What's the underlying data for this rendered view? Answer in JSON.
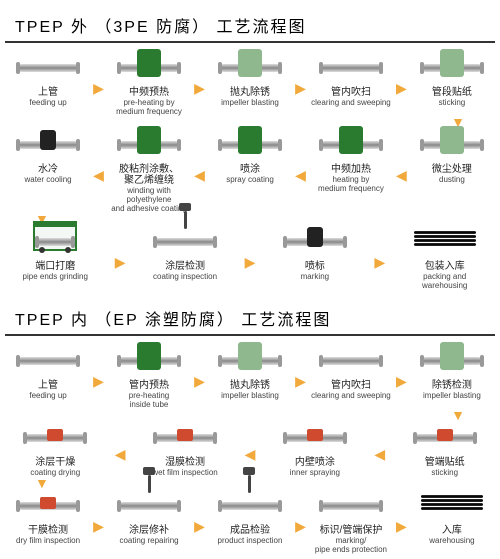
{
  "colors": {
    "arrow": "#f2a93b",
    "machine_green": "#2a7a2f",
    "machine_light": "#8fb88f",
    "machine_red": "#d04a2f",
    "pipe": "#888",
    "text": "#222"
  },
  "section_a": {
    "title": "TPEP 外 （3PE 防腐） 工艺流程图",
    "rows": [
      {
        "dir": "right",
        "steps": [
          {
            "cn": "上管",
            "en": "feeding up",
            "mach": ""
          },
          {
            "cn": "中频预热",
            "en": "pre-heating by\nmedium frequency",
            "mach": "green"
          },
          {
            "cn": "抛丸除锈",
            "en": "impeller blasting",
            "mach": "light"
          },
          {
            "cn": "管内吹扫",
            "en": "clearing and sweeping",
            "mach": ""
          },
          {
            "cn": "管段贴纸",
            "en": "sticking",
            "mach": "light"
          }
        ]
      },
      {
        "dir": "left",
        "steps": [
          {
            "cn": "水冷",
            "en": "water cooling",
            "mach": "black"
          },
          {
            "cn": "胶粘剂涂敷、\n聚乙烯缠绕",
            "en": "winding with polyethylene\nand adhesive coating",
            "mach": "green"
          },
          {
            "cn": "喷涂",
            "en": "spray coating",
            "mach": "green"
          },
          {
            "cn": "中频加热",
            "en": "heating by\nmedium frequency",
            "mach": "green"
          },
          {
            "cn": "微尘处理",
            "en": "dusting",
            "mach": "light"
          }
        ]
      },
      {
        "dir": "right",
        "steps": [
          {
            "cn": "端口打磨",
            "en": "pipe ends grinding",
            "mach": "frame"
          },
          {
            "cn": "涂层检测",
            "en": "coating inspection",
            "mach": "stand"
          },
          {
            "cn": "喷标",
            "en": "marking",
            "mach": "black"
          },
          {
            "cn": "包装入库",
            "en": "packing and warehousing",
            "mach": "rack"
          }
        ]
      }
    ]
  },
  "section_b": {
    "title": "TPEP 内 （EP 涂塑防腐） 工艺流程图",
    "rows": [
      {
        "dir": "right",
        "steps": [
          {
            "cn": "上管",
            "en": "feeding up",
            "mach": ""
          },
          {
            "cn": "管内预热",
            "en": "pre-heating\ninside tube",
            "mach": "green"
          },
          {
            "cn": "抛丸除锈",
            "en": "impeller blasting",
            "mach": "light"
          },
          {
            "cn": "管内吹扫",
            "en": "clearing and sweeping",
            "mach": ""
          },
          {
            "cn": "除锈检测",
            "en": "impeller blasting",
            "mach": "light"
          }
        ]
      },
      {
        "dir": "left",
        "steps": [
          {
            "cn": "涂层干燥",
            "en": "coating drying",
            "mach": "red"
          },
          {
            "cn": "湿膜检测",
            "en": "wet film inspection",
            "mach": "red"
          },
          {
            "cn": "内壁喷涂",
            "en": "inner spraying",
            "mach": "red"
          },
          {
            "cn": "管端贴纸",
            "en": "sticking",
            "mach": "red"
          }
        ]
      },
      {
        "dir": "right",
        "steps": [
          {
            "cn": "干膜检测",
            "en": "dry film inspection",
            "mach": "red"
          },
          {
            "cn": "涂层修补",
            "en": "coating repairing",
            "mach": "stand"
          },
          {
            "cn": "成品检验",
            "en": "product inspection",
            "mach": "stand"
          },
          {
            "cn": "标识/管端保护",
            "en": "marking/\npipe ends protection",
            "mach": ""
          },
          {
            "cn": "入库",
            "en": "warehousing",
            "mach": "rack"
          }
        ]
      }
    ]
  }
}
